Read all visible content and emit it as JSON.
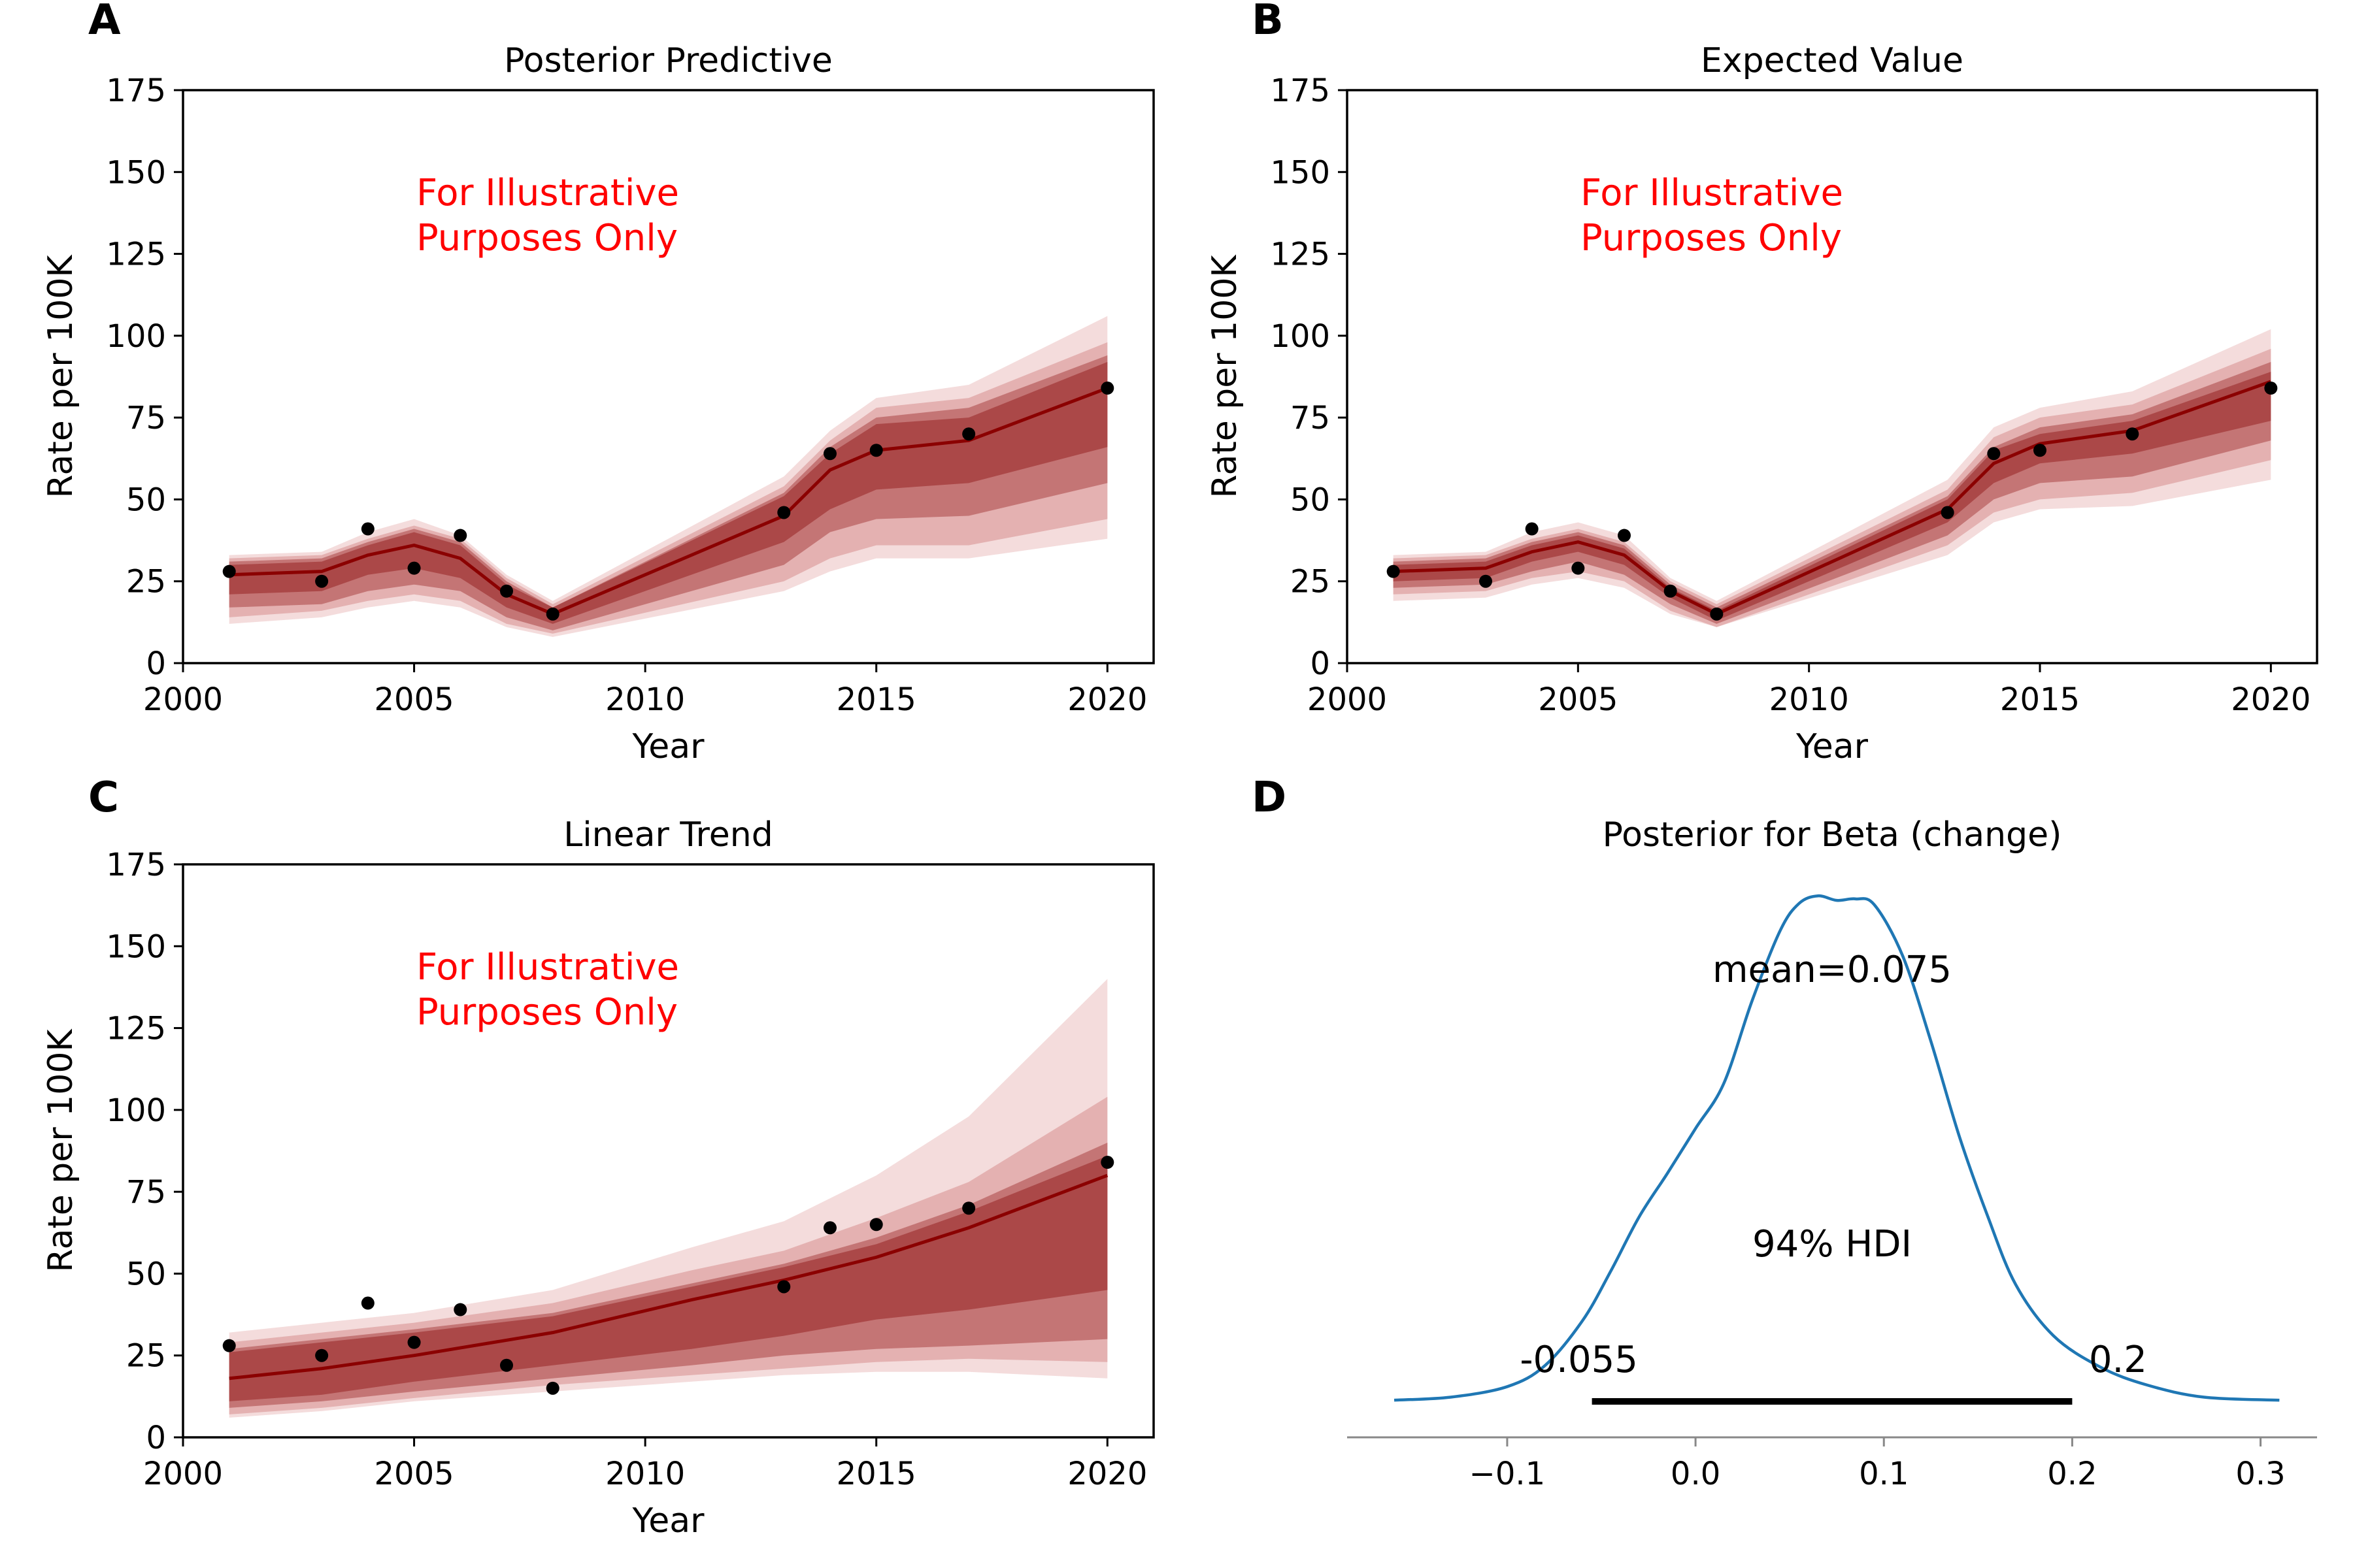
{
  "colors": {
    "band_outer": "#f4dcdc",
    "band_2": "#e4b1b1",
    "band_3": "#c47575",
    "band_inner": "#ab4848",
    "line": "#8b0000",
    "points": "#000000",
    "note": "#ff0000",
    "kde": "#1f77b4",
    "hdi": "#000000"
  },
  "chart_data": [
    {
      "panel": "A",
      "title": "Posterior Predictive",
      "type": "line",
      "xlabel": "Year",
      "ylabel": "Rate per 100K",
      "note": [
        "For Illustrative",
        "Purposes Only"
      ],
      "xlim": [
        2000,
        2021
      ],
      "ylim": [
        0,
        175
      ],
      "xticks": [
        2000,
        2005,
        2010,
        2015,
        2020
      ],
      "yticks": [
        0,
        25,
        50,
        75,
        100,
        125,
        150,
        175
      ],
      "x": [
        2001,
        2003,
        2004,
        2005,
        2006,
        2007,
        2008,
        2013,
        2014,
        2015,
        2017,
        2020
      ],
      "mean": [
        27,
        28,
        33,
        36,
        32,
        21,
        15,
        45,
        59,
        65,
        68,
        84
      ],
      "bands": [
        {
          "lower": [
            12,
            14,
            17,
            19,
            17,
            11,
            8,
            22,
            28,
            32,
            32,
            38
          ],
          "upper": [
            33,
            34,
            40,
            44,
            39,
            27,
            19,
            57,
            71,
            81,
            85,
            106
          ]
        },
        {
          "lower": [
            14,
            16,
            19,
            21,
            19,
            12,
            9,
            25,
            32,
            36,
            36,
            44
          ],
          "upper": [
            32,
            33,
            38,
            42,
            38,
            26,
            18,
            54,
            68,
            78,
            81,
            98
          ]
        },
        {
          "lower": [
            17,
            18,
            22,
            24,
            22,
            14,
            10,
            30,
            40,
            44,
            45,
            55
          ],
          "upper": [
            31,
            32,
            37,
            41,
            37,
            25,
            17,
            52,
            66,
            75,
            78,
            94
          ]
        },
        {
          "lower": [
            21,
            22,
            27,
            29,
            26,
            17,
            12,
            37,
            47,
            53,
            55,
            66
          ],
          "upper": [
            30,
            31,
            36,
            40,
            36,
            24,
            17,
            51,
            64,
            73,
            75,
            92
          ]
        }
      ],
      "points": {
        "x": [
          2001,
          2003,
          2004,
          2005,
          2006,
          2007,
          2008,
          2013,
          2014,
          2015,
          2017,
          2020
        ],
        "y": [
          28,
          25,
          41,
          29,
          39,
          22,
          15,
          46,
          64,
          65,
          70,
          84
        ]
      }
    },
    {
      "panel": "B",
      "title": "Expected Value",
      "type": "line",
      "xlabel": "Year",
      "ylabel": "Rate per 100K",
      "note": [
        "For Illustrative",
        "Purposes Only"
      ],
      "xlim": [
        2000,
        2021
      ],
      "ylim": [
        0,
        175
      ],
      "xticks": [
        2000,
        2005,
        2010,
        2015,
        2020
      ],
      "yticks": [
        0,
        25,
        50,
        75,
        100,
        125,
        150,
        175
      ],
      "x": [
        2001,
        2003,
        2004,
        2005,
        2006,
        2007,
        2008,
        2013,
        2014,
        2015,
        2017,
        2020
      ],
      "mean": [
        28,
        29,
        34,
        37,
        33,
        22,
        15,
        47,
        61,
        67,
        71,
        86
      ],
      "bands": [
        {
          "lower": [
            19,
            20,
            24,
            26,
            23,
            15,
            11,
            33,
            43,
            47,
            48,
            56
          ],
          "upper": [
            33,
            34,
            40,
            43,
            39,
            26,
            19,
            56,
            72,
            78,
            83,
            102
          ]
        },
        {
          "lower": [
            21,
            22,
            26,
            28,
            25,
            16,
            11,
            36,
            46,
            50,
            52,
            62
          ],
          "upper": [
            32,
            33,
            38,
            41,
            37,
            25,
            18,
            53,
            69,
            75,
            79,
            96
          ]
        },
        {
          "lower": [
            23,
            24,
            28,
            31,
            27,
            18,
            12,
            39,
            50,
            55,
            57,
            68
          ],
          "upper": [
            31,
            32,
            37,
            40,
            36,
            24,
            17,
            51,
            66,
            72,
            76,
            92
          ]
        },
        {
          "lower": [
            25,
            26,
            31,
            34,
            30,
            20,
            13,
            43,
            55,
            61,
            64,
            74
          ],
          "upper": [
            30,
            31,
            36,
            39,
            35,
            23,
            16,
            50,
            65,
            70,
            74,
            89
          ]
        }
      ],
      "points": {
        "x": [
          2001,
          2003,
          2004,
          2005,
          2006,
          2007,
          2008,
          2013,
          2014,
          2015,
          2017,
          2020
        ],
        "y": [
          28,
          25,
          41,
          29,
          39,
          22,
          15,
          46,
          64,
          65,
          70,
          84
        ]
      }
    },
    {
      "panel": "C",
      "title": "Linear Trend",
      "type": "line",
      "xlabel": "Year",
      "ylabel": "Rate per 100K",
      "note": [
        "For Illustrative",
        "Purposes Only"
      ],
      "xlim": [
        2000,
        2021
      ],
      "ylim": [
        0,
        175
      ],
      "xticks": [
        2000,
        2005,
        2010,
        2015,
        2020
      ],
      "yticks": [
        0,
        25,
        50,
        75,
        100,
        125,
        150,
        175
      ],
      "x": [
        2001,
        2003,
        2005,
        2008,
        2011,
        2013,
        2015,
        2017,
        2020
      ],
      "mean": [
        18,
        21,
        25,
        32,
        42,
        48,
        55,
        64,
        80
      ],
      "bands": [
        {
          "lower": [
            6,
            8,
            11,
            14,
            17,
            19,
            20,
            20,
            18
          ],
          "upper": [
            32,
            35,
            38,
            45,
            58,
            66,
            80,
            98,
            140
          ]
        },
        {
          "lower": [
            7,
            9,
            12,
            16,
            19,
            21,
            23,
            24,
            23
          ],
          "upper": [
            29,
            32,
            35,
            41,
            51,
            57,
            67,
            78,
            104
          ]
        },
        {
          "lower": [
            9,
            11,
            14,
            18,
            22,
            25,
            27,
            28,
            30
          ],
          "upper": [
            27,
            30,
            33,
            38,
            47,
            53,
            61,
            71,
            90
          ]
        },
        {
          "lower": [
            11,
            13,
            17,
            22,
            27,
            31,
            36,
            39,
            45
          ],
          "upper": [
            26,
            29,
            32,
            37,
            46,
            52,
            59,
            69,
            86
          ]
        }
      ],
      "points": {
        "x": [
          2001,
          2003,
          2004,
          2005,
          2006,
          2007,
          2008,
          2013,
          2014,
          2015,
          2017,
          2020
        ],
        "y": [
          28,
          25,
          41,
          29,
          39,
          22,
          15,
          46,
          64,
          65,
          70,
          84
        ]
      }
    },
    {
      "panel": "D",
      "title": "Posterior for Beta (change)",
      "type": "area",
      "xlim": [
        -0.185,
        0.33
      ],
      "xticks": [
        -0.1,
        0.0,
        0.1,
        0.2,
        0.3
      ],
      "xtick_labels": [
        "−0.1",
        "0.0",
        "0.1",
        "0.2",
        "0.3"
      ],
      "density_x": [
        -0.16,
        -0.13,
        -0.1,
        -0.08,
        -0.06,
        -0.045,
        -0.03,
        -0.015,
        0.0,
        0.015,
        0.03,
        0.045,
        0.055,
        0.065,
        0.075,
        0.085,
        0.095,
        0.11,
        0.125,
        0.14,
        0.155,
        0.17,
        0.19,
        0.215,
        0.24,
        0.27,
        0.31
      ],
      "density_y": [
        0.3,
        0.5,
        1.2,
        2.6,
        5.6,
        8.9,
        12.5,
        15.4,
        18.4,
        21.4,
        26.9,
        31.6,
        33.4,
        33.9,
        33.6,
        33.7,
        33.3,
        29.9,
        24.2,
        17.9,
        12.6,
        8.0,
        4.6,
        2.5,
        1.3,
        0.5,
        0.3
      ],
      "ylim": [
        0,
        36
      ],
      "mean_label": "mean=0.075",
      "hdi_label": "94% HDI",
      "hdi": [
        -0.055,
        0.2
      ],
      "hdi_low_label": "-0.055",
      "hdi_high_label": "0.2"
    }
  ]
}
